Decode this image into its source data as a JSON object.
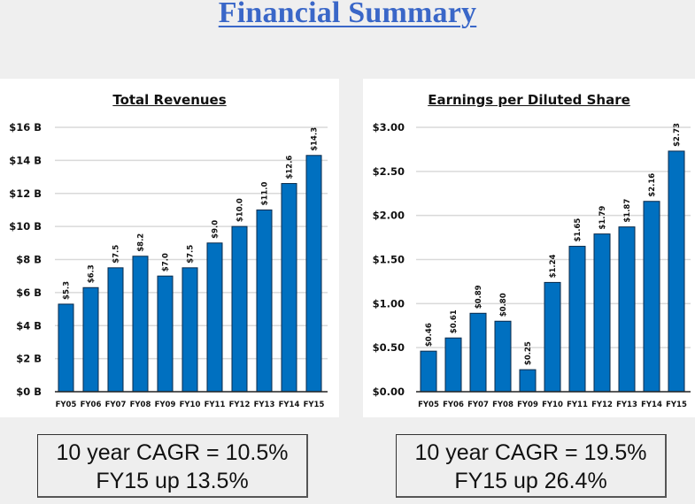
{
  "title": "Financial Summary",
  "colors": {
    "title": "#3a67c8",
    "bar": "#0070c0",
    "bar_edge": "#0a2a4a",
    "grid": "#d9d9d9"
  },
  "chart_data": [
    {
      "type": "bar",
      "title": "Total Revenues",
      "xlabel": "",
      "ylabel": "",
      "categories": [
        "FY05",
        "FY06",
        "FY07",
        "FY08",
        "FY09",
        "FY10",
        "FY11",
        "FY12",
        "FY13",
        "FY14",
        "FY15"
      ],
      "values": [
        5.3,
        6.3,
        7.5,
        8.2,
        7.0,
        7.5,
        9.0,
        10.0,
        11.0,
        12.6,
        14.3
      ],
      "data_labels": [
        "$5.3",
        "$6.3",
        "$7.5",
        "$8.2",
        "$7.0",
        "$7.5",
        "$9.0",
        "$10.0",
        "$11.0",
        "$12.6",
        "$14.3"
      ],
      "ylim": [
        0,
        16
      ],
      "yticks": [
        0,
        2,
        4,
        6,
        8,
        10,
        12,
        14,
        16
      ],
      "ytick_labels": [
        "$0 B",
        "$2 B",
        "$4 B",
        "$6 B",
        "$8 B",
        "$10 B",
        "$12 B",
        "$14 B",
        "$16 B"
      ],
      "grid": true,
      "legend": "none"
    },
    {
      "type": "bar",
      "title": "Earnings per Diluted Share",
      "xlabel": "",
      "ylabel": "",
      "categories": [
        "FY05",
        "FY06",
        "FY07",
        "FY08",
        "FY09",
        "FY10",
        "FY11",
        "FY12",
        "FY13",
        "FY14",
        "FY15"
      ],
      "values": [
        0.46,
        0.61,
        0.89,
        0.8,
        0.25,
        1.24,
        1.65,
        1.79,
        1.87,
        2.16,
        2.73
      ],
      "data_labels": [
        "$0.46",
        "$0.61",
        "$0.89",
        "$0.80",
        "$0.25",
        "$1.24",
        "$1.65",
        "$1.79",
        "$1.87",
        "$2.16",
        "$2.73"
      ],
      "ylim": [
        0,
        3
      ],
      "yticks": [
        0,
        0.5,
        1.0,
        1.5,
        2.0,
        2.5,
        3.0
      ],
      "ytick_labels": [
        "$0.00",
        "$0.50",
        "$1.00",
        "$1.50",
        "$2.00",
        "$2.50",
        "$3.00"
      ],
      "grid": true,
      "legend": "none"
    }
  ],
  "summaries": [
    {
      "line1": "10 year CAGR = 10.5%",
      "line2": "FY15 up 13.5%"
    },
    {
      "line1": "10 year CAGR = 19.5%",
      "line2": "FY15 up 26.4%"
    }
  ]
}
